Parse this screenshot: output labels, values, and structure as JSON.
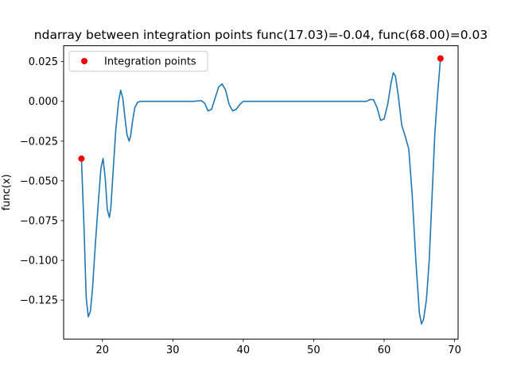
{
  "chart_data": {
    "type": "line",
    "title": "ndarray between integration points func(17.03)=-0.04, func(68.00)=0.03",
    "xlabel": "",
    "ylabel": "func(x)",
    "xlim": [
      14.5,
      70.5
    ],
    "ylim": [
      -0.1495,
      0.035
    ],
    "xticks": [
      20,
      30,
      40,
      50,
      60,
      70
    ],
    "yticks": [
      -0.125,
      -0.1,
      -0.075,
      -0.05,
      -0.025,
      0.0,
      0.025
    ],
    "xtick_labels": [
      "20",
      "30",
      "40",
      "50",
      "60",
      "70"
    ],
    "ytick_labels": [
      "−0.125",
      "−0.100",
      "−0.075",
      "−0.050",
      "−0.025",
      "0.000",
      "0.025"
    ],
    "grid": false,
    "legend_position": "upper-left",
    "series": [
      {
        "kind": "line",
        "color": "#1f77b4",
        "x": [
          17.03,
          17.4,
          17.7,
          18.0,
          18.3,
          18.6,
          19.0,
          19.4,
          19.8,
          20.1,
          20.4,
          20.7,
          21.0,
          21.2,
          21.5,
          21.9,
          22.3,
          22.6,
          22.9,
          23.2,
          23.5,
          23.8,
          24.0,
          24.3,
          24.6,
          25.0,
          25.4,
          25.8,
          26.5,
          28.0,
          30.0,
          32.0,
          33.0,
          33.5,
          34.0,
          34.5,
          35.0,
          35.5,
          36.0,
          36.5,
          37.0,
          37.5,
          38.0,
          38.5,
          39.0,
          39.5,
          40.0,
          40.5,
          41.0,
          42.0,
          45.0,
          50.0,
          55.0,
          56.0,
          57.0,
          57.5,
          58.0,
          58.5,
          59.0,
          59.5,
          60.0,
          60.5,
          61.0,
          61.3,
          61.6,
          62.0,
          62.5,
          63.0,
          63.5,
          64.0,
          64.5,
          65.0,
          65.3,
          65.6,
          66.0,
          66.4,
          66.8,
          67.2,
          67.6,
          68.0
        ],
        "y": [
          -0.036,
          -0.08,
          -0.123,
          -0.1355,
          -0.132,
          -0.118,
          -0.09,
          -0.065,
          -0.042,
          -0.036,
          -0.048,
          -0.068,
          -0.073,
          -0.067,
          -0.046,
          -0.018,
          0.0,
          0.007,
          0.002,
          -0.01,
          -0.021,
          -0.025,
          -0.022,
          -0.012,
          -0.004,
          -0.0005,
          0.0,
          0.0,
          0.0,
          0.0,
          0.0,
          0.0,
          0.0,
          0.0003,
          0.0005,
          -0.001,
          -0.006,
          -0.005,
          0.002,
          0.009,
          0.011,
          0.007,
          -0.002,
          -0.006,
          -0.005,
          -0.002,
          0.0,
          0.0,
          0.0,
          0.0,
          0.0,
          0.0,
          0.0,
          0.0,
          0.0,
          0.0,
          0.0012,
          0.001,
          -0.004,
          -0.012,
          -0.011,
          -0.002,
          0.012,
          0.018,
          0.016,
          0.004,
          -0.015,
          -0.022,
          -0.03,
          -0.06,
          -0.1,
          -0.133,
          -0.14,
          -0.137,
          -0.125,
          -0.1,
          -0.06,
          -0.02,
          0.005,
          0.027
        ]
      },
      {
        "kind": "scatter",
        "name": "Integration points",
        "color": "#ff0000",
        "x": [
          17.03,
          68.0
        ],
        "y": [
          -0.036,
          0.027
        ]
      }
    ]
  }
}
